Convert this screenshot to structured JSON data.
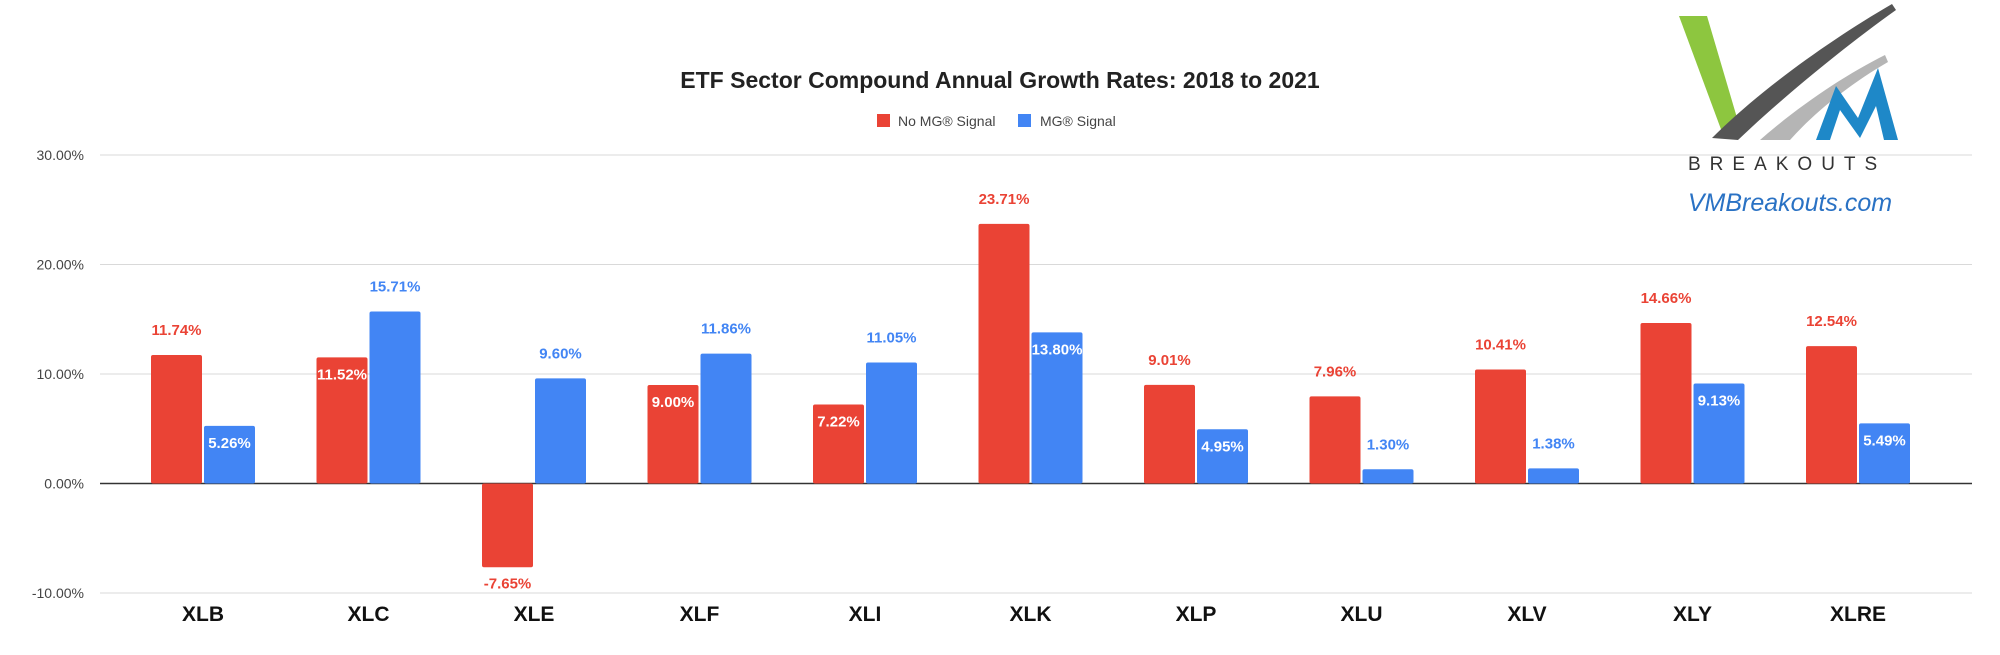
{
  "chart_data": {
    "type": "bar",
    "title": "ETF Sector Compound Annual Growth Rates: 2018 to 2021",
    "xlabel": "",
    "ylabel": "",
    "categories": [
      "XLB",
      "XLC",
      "XLE",
      "XLF",
      "XLI",
      "XLK",
      "XLP",
      "XLU",
      "XLV",
      "XLY",
      "XLRE"
    ],
    "series": [
      {
        "name": "No MG® Signal",
        "color": "#ea4335",
        "values": [
          11.74,
          11.52,
          -7.65,
          9.0,
          7.22,
          23.71,
          9.01,
          7.96,
          10.41,
          14.66,
          12.54
        ],
        "labels": [
          "11.74%",
          "11.52%",
          "-7.65%",
          "9.00%",
          "7.22%",
          "23.71%",
          "9.01%",
          "7.96%",
          "10.41%",
          "14.66%",
          "12.54%"
        ]
      },
      {
        "name": "MG® Signal",
        "color": "#4285f4",
        "values": [
          5.26,
          15.71,
          9.6,
          11.86,
          11.05,
          13.8,
          4.95,
          1.3,
          1.38,
          9.13,
          5.49
        ],
        "labels": [
          "5.26%",
          "15.71%",
          "9.60%",
          "11.86%",
          "11.05%",
          "13.80%",
          "4.95%",
          "1.30%",
          "1.38%",
          "9.13%",
          "5.49%"
        ]
      }
    ],
    "ylim": [
      -10,
      30
    ],
    "yticks": [
      30,
      20,
      10,
      0,
      -10
    ],
    "ytick_labels": [
      "30.00%",
      "20.00%",
      "10.00%",
      "0.00%",
      "-10.00%"
    ],
    "grid": true,
    "legend_position": "top-center"
  },
  "logo": {
    "word": "BREAKOUTS",
    "url": "VMBreakouts.com",
    "colors": {
      "green": "#8dc63f",
      "gray": "#8a8a8a",
      "blue": "#1e88c8"
    }
  }
}
